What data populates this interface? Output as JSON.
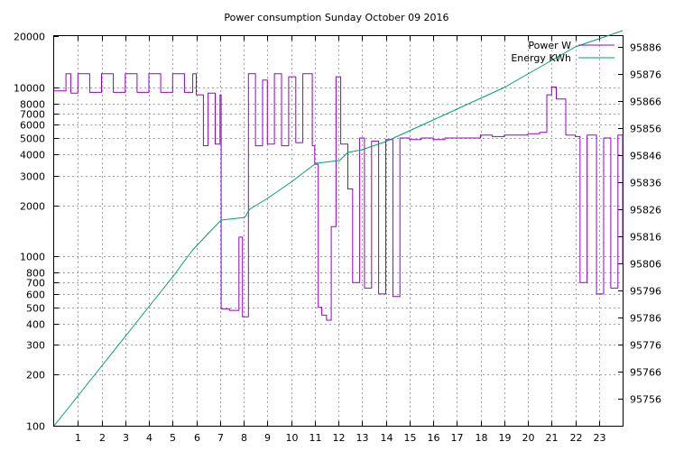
{
  "chart_data": {
    "type": "line",
    "title": "Power consumption Sunday October 09 2016",
    "xlabel": "",
    "ylabel": "",
    "y2label": "",
    "grid": true,
    "legend_position": "top-right",
    "xlim": [
      0,
      24
    ],
    "x_ticks": [
      1,
      2,
      3,
      4,
      5,
      6,
      7,
      8,
      9,
      10,
      11,
      12,
      13,
      14,
      15,
      16,
      17,
      18,
      19,
      20,
      21,
      22,
      23
    ],
    "ylim": [
      100,
      20000
    ],
    "y_scale": "log",
    "y_ticks": [
      100,
      200,
      300,
      400,
      500,
      600,
      700,
      800,
      1000,
      2000,
      3000,
      4000,
      5000,
      6000,
      7000,
      8000,
      10000,
      20000
    ],
    "y2lim": [
      95746,
      95890
    ],
    "y2_ticks": [
      95756,
      95766,
      95776,
      95786,
      95796,
      95806,
      95816,
      95826,
      95836,
      95846,
      95856,
      95866,
      95876,
      95886
    ],
    "colors": {
      "power": "#9400d3",
      "energy": "#009e73"
    },
    "series": [
      {
        "name": "Power W",
        "axis": "left",
        "x": [
          0.0,
          0.5,
          0.7,
          1.0,
          1.5,
          2.0,
          2.5,
          3.0,
          3.5,
          4.0,
          4.5,
          5.0,
          5.5,
          5.85,
          6.0,
          6.3,
          6.5,
          6.8,
          7.0,
          7.05,
          7.4,
          7.8,
          7.95,
          8.2,
          8.5,
          8.8,
          9.0,
          9.3,
          9.6,
          9.9,
          10.2,
          10.5,
          10.9,
          11.0,
          11.15,
          11.3,
          11.5,
          11.7,
          11.9,
          12.1,
          12.4,
          12.6,
          12.9,
          13.1,
          13.4,
          13.7,
          14.0,
          14.3,
          14.6,
          15.0,
          15.5,
          16.0,
          16.5,
          17.0,
          17.5,
          18.0,
          18.5,
          19.0,
          19.5,
          20.0,
          20.5,
          20.8,
          21.0,
          21.2,
          21.6,
          22.0,
          22.2,
          22.5,
          22.9,
          23.2,
          23.5,
          23.8,
          24.0
        ],
        "y": [
          9500,
          12000,
          9200,
          12000,
          9300,
          12000,
          9300,
          12000,
          9300,
          12000,
          9300,
          12000,
          9300,
          12000,
          9000,
          4500,
          9200,
          4600,
          9000,
          490,
          480,
          1300,
          440,
          12000,
          4500,
          11000,
          4600,
          12000,
          4500,
          11500,
          4700,
          12000,
          4500,
          3500,
          500,
          450,
          420,
          1500,
          11500,
          4600,
          2500,
          700,
          5000,
          650,
          4800,
          600,
          4900,
          580,
          5000,
          4900,
          5000,
          4900,
          5000,
          5000,
          5000,
          5200,
          5100,
          5200,
          5200,
          5300,
          5400,
          9000,
          10000,
          8500,
          5200,
          5100,
          700,
          5200,
          600,
          5000,
          650,
          5200,
          900
        ]
      },
      {
        "name": "Energy KWh",
        "axis": "right",
        "x": [
          0.0,
          1.0,
          2.0,
          3.0,
          4.0,
          5.0,
          5.85,
          6.5,
          7.05,
          8.05,
          8.25,
          9.0,
          10.0,
          11.05,
          12.05,
          12.4,
          13.0,
          14.0,
          15.0,
          16.0,
          17.0,
          18.0,
          19.0,
          20.0,
          21.0,
          22.0,
          23.0,
          24.0
        ],
        "y": [
          95746,
          95757,
          95768,
          95779,
          95790,
          95801,
          95811,
          95817,
          95822,
          95823,
          95826,
          95830,
          95836,
          95843,
          95844,
          95847,
          95848,
          95851,
          95855,
          95859,
          95863,
          95867,
          95871,
          95876,
          95881,
          95886,
          95889,
          95892
        ]
      }
    ]
  }
}
